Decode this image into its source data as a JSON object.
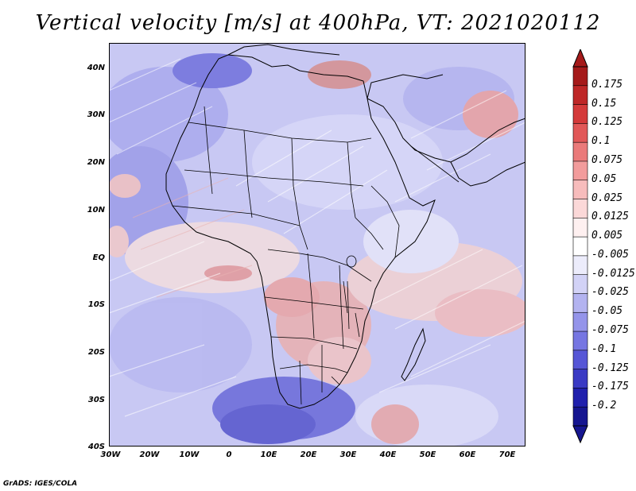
{
  "title": "Vertical velocity [m/s] at 400hPa, VT: 2021020112",
  "footer": "GrADS: IGES/COLA",
  "map": {
    "lat_labels": [
      "40N",
      "30N",
      "20N",
      "10N",
      "EQ",
      "10S",
      "20S",
      "30S",
      "40S"
    ],
    "lon_labels": [
      "30W",
      "20W",
      "10W",
      "0",
      "10E",
      "20E",
      "30E",
      "40E",
      "50E",
      "60E",
      "70E"
    ],
    "lat_range": [
      -40,
      45
    ],
    "lon_range": [
      -30,
      75
    ]
  },
  "colorbar": {
    "labels": [
      "0.175",
      "0.15",
      "0.125",
      "0.1",
      "0.075",
      "0.05",
      "0.025",
      "0.0125",
      "0.005",
      "-0.005",
      "-0.0125",
      "-0.025",
      "-0.05",
      "-0.075",
      "-0.1",
      "-0.125",
      "-0.175",
      "-0.2"
    ],
    "colors": [
      "#a51a1a",
      "#be2727",
      "#d43a3a",
      "#e15858",
      "#ea7a7a",
      "#f29c9c",
      "#f7bcbc",
      "#fbd8d8",
      "#fef0f0",
      "#ffffff",
      "#ececfb",
      "#d2d2f6",
      "#b3b3f0",
      "#9494ea",
      "#7676e2",
      "#5656d6",
      "#3a3ac4",
      "#2020ad",
      "#161690"
    ],
    "colors_note": "19 bins, top (max) to bottom (min)"
  }
}
